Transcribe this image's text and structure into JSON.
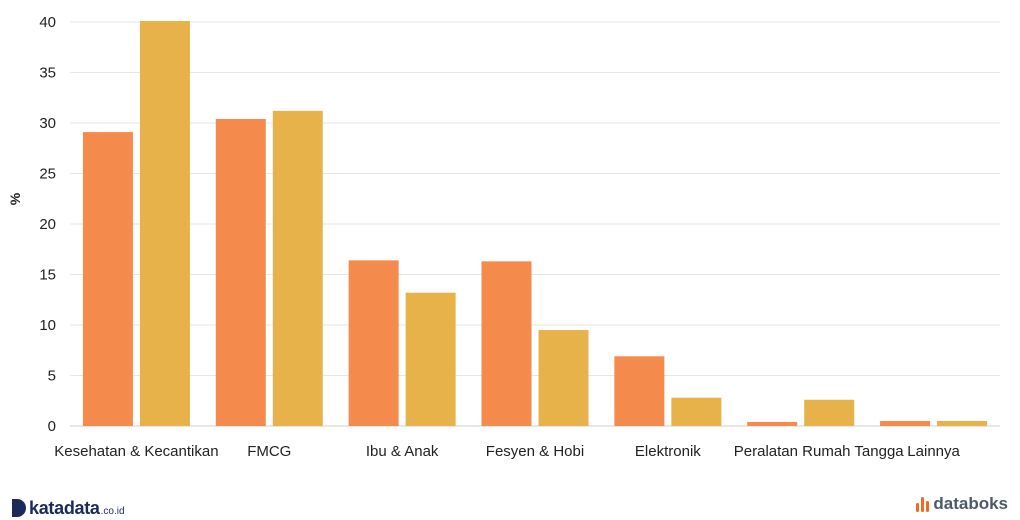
{
  "chart_data": {
    "type": "bar",
    "title": "",
    "xlabel": "",
    "ylabel": "%",
    "ylim": [
      0,
      40
    ],
    "yticks": [
      0,
      5,
      10,
      15,
      20,
      25,
      30,
      35,
      40
    ],
    "grid": true,
    "legend": "none",
    "categories": [
      "Kesehatan & Kecantikan",
      "FMCG",
      "Ibu & Anak",
      "Fesyen & Hobi",
      "Elektronik",
      "Peralatan Rumah Tangga",
      "Lainnya"
    ],
    "series": [
      {
        "color": "#f48a4c",
        "values": [
          29.1,
          30.4,
          16.4,
          16.3,
          6.9,
          0.4,
          0.5
        ]
      },
      {
        "color": "#e8b24b",
        "values": [
          40.1,
          31.2,
          13.2,
          9.5,
          2.8,
          2.6,
          0.5
        ]
      }
    ]
  },
  "footer": {
    "left_brand": "katadata",
    "left_suffix": ".co.id",
    "right_brand": "databoks"
  }
}
